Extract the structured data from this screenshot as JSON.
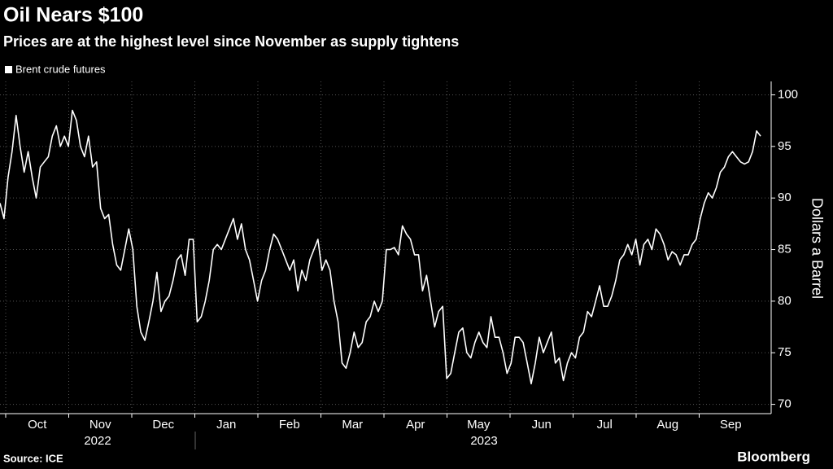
{
  "chart_data": {
    "type": "line",
    "title": "Oil Nears $100",
    "subtitle": "Prices are at the highest level since November as supply tightens",
    "y_label": "Dollars a Barrel",
    "source": "Source: ICE",
    "brand": "Bloomberg",
    "month_labels": [
      "Oct",
      "Nov",
      "Dec",
      "Jan",
      "Feb",
      "Mar",
      "Apr",
      "May",
      "Jun",
      "Jul",
      "Aug",
      "Sep"
    ],
    "year_labels": [
      "2022",
      "2023"
    ],
    "ylim": [
      69.1,
      101.3
    ],
    "yticks": [
      70,
      75,
      80,
      85,
      90,
      95,
      100
    ],
    "grid": true,
    "series": [
      {
        "name": "Brent crude futures",
        "color": "#ffffff",
        "values": [
          89.5,
          88,
          92,
          94.5,
          98,
          95,
          92.5,
          94.5,
          92,
          90,
          93,
          93.5,
          94,
          96,
          97,
          95,
          96,
          95,
          98.5,
          97.5,
          95,
          94,
          96,
          93,
          93.5,
          89,
          88,
          88.4,
          85.5,
          83.5,
          83,
          85,
          87,
          85,
          79.5,
          77,
          76.2,
          78,
          80,
          82.8,
          79,
          80,
          80.5,
          82,
          84,
          84.5,
          82.5,
          86,
          86,
          78,
          78.5,
          80,
          82,
          85,
          85.5,
          85,
          86,
          87,
          88,
          86,
          87.5,
          85,
          84,
          82,
          80,
          82,
          83,
          85,
          86.5,
          86,
          85,
          84,
          83,
          84,
          81,
          83,
          82,
          84,
          85,
          86,
          83,
          84,
          83,
          80,
          78,
          74,
          73.5,
          75,
          77,
          75.5,
          76,
          78,
          78.5,
          80,
          79,
          80,
          85,
          85,
          85.2,
          84.5,
          87.3,
          86.5,
          86,
          84.5,
          84.5,
          81,
          82.5,
          80,
          77.5,
          79,
          79.5,
          72.5,
          73,
          75,
          77,
          77.4,
          75,
          74.5,
          76,
          77,
          76,
          75.5,
          78.5,
          76.5,
          76.5,
          75,
          73,
          74,
          76.5,
          76.5,
          76,
          74,
          72,
          74,
          76.5,
          75,
          76,
          77,
          74,
          74.5,
          72.3,
          74,
          75,
          74.5,
          76.5,
          77,
          79,
          78.5,
          80,
          81.5,
          79.5,
          79.5,
          80.5,
          82,
          84,
          84.5,
          85.5,
          84.5,
          86,
          83.5,
          85.5,
          86,
          85,
          87,
          86.5,
          85.5,
          84,
          84.8,
          84.5,
          83.5,
          84.5,
          84.5,
          85.5,
          86,
          88,
          89.5,
          90.5,
          90,
          91,
          92.5,
          93,
          94,
          94.5,
          94,
          93.5,
          93.3,
          93.5,
          94.5,
          96.5,
          96
        ]
      }
    ]
  }
}
